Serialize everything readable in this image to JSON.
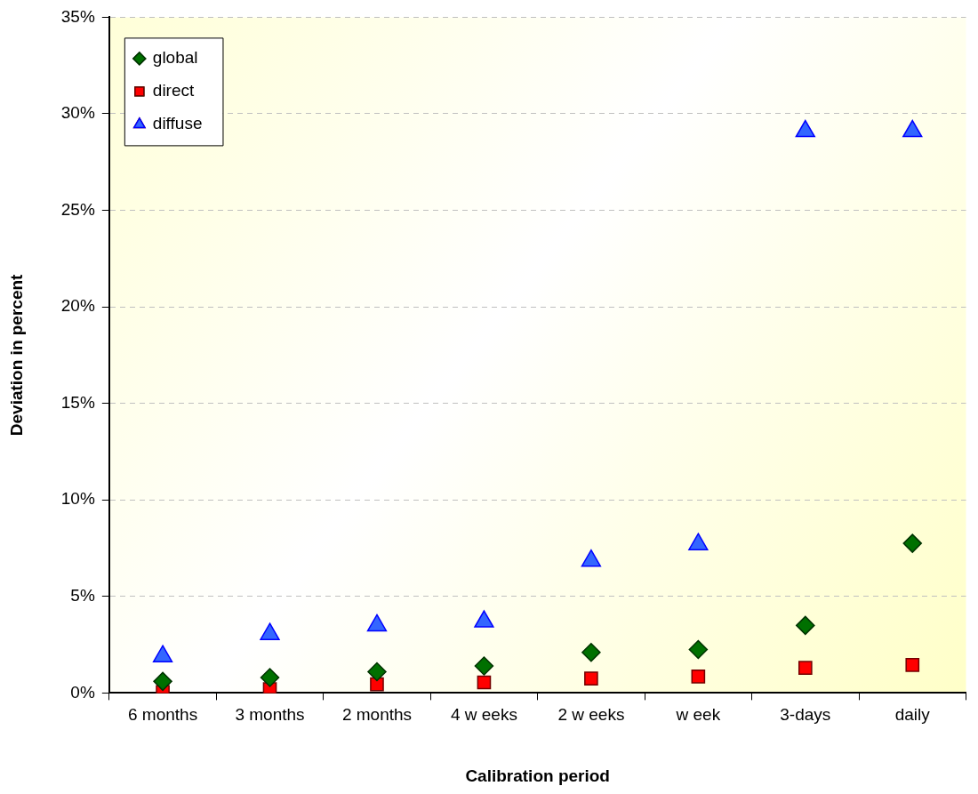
{
  "chart_data": {
    "type": "scatter",
    "xlabel": "Calibration period",
    "ylabel": "Deviation in percent",
    "categories": [
      "6 months",
      "3 months",
      "2 months",
      "4 w eeks",
      "2 w eeks",
      "w eek",
      "3-days",
      "daily"
    ],
    "series": [
      {
        "name": "global",
        "color": "#007000",
        "marker": "diamond",
        "values": [
          0.6,
          0.8,
          1.1,
          1.4,
          2.1,
          2.25,
          3.5,
          7.75
        ]
      },
      {
        "name": "direct",
        "color": "#ff0000",
        "marker": "square",
        "values": [
          0.05,
          0.2,
          0.45,
          0.55,
          0.75,
          0.85,
          1.3,
          1.45
        ]
      },
      {
        "name": "diffuse",
        "color": "#3366ff",
        "marker": "triangle",
        "values": [
          1.9,
          3.05,
          3.5,
          3.7,
          6.85,
          7.7,
          29.1,
          29.1
        ]
      }
    ],
    "ylim": [
      0,
      35
    ],
    "yticks": [
      {
        "value": 0,
        "label": "0%"
      },
      {
        "value": 5,
        "label": "5%"
      },
      {
        "value": 10,
        "label": "10%"
      },
      {
        "value": 15,
        "label": "15%"
      },
      {
        "value": 20,
        "label": "20%"
      },
      {
        "value": 25,
        "label": "25%"
      },
      {
        "value": 30,
        "label": "30%"
      },
      {
        "value": 35,
        "label": "35%"
      }
    ],
    "grid": "y",
    "legend": "top left"
  }
}
